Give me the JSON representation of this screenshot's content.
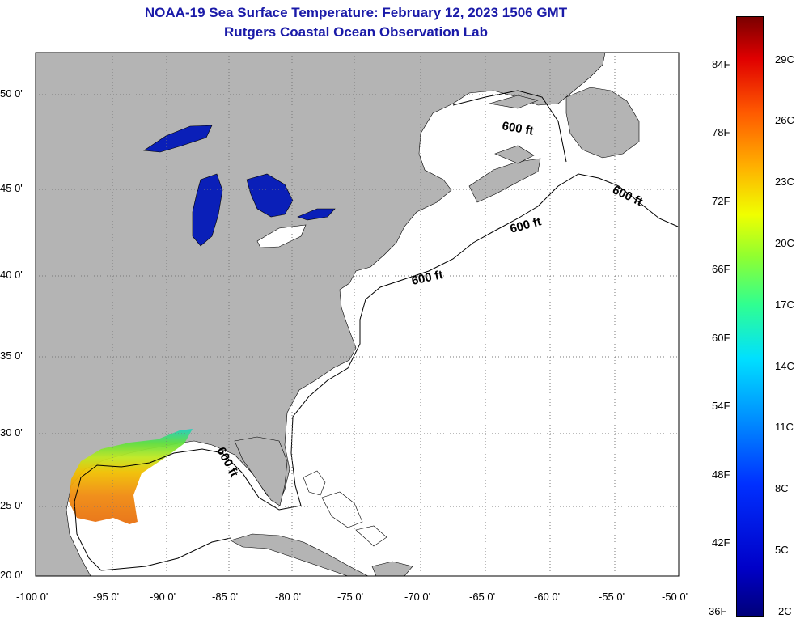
{
  "header": {
    "title": "NOAA-19 Sea Surface Temperature:  February 12, 2023 1506 GMT",
    "subtitle": "Rutgers Coastal Ocean Observation Lab"
  },
  "axes": {
    "lat_labels": [
      "50 0'",
      "45 0'",
      "40 0'",
      "35 0'",
      "30 0'",
      "25 0'",
      "20 0'"
    ],
    "lon_labels": [
      "-100 0'",
      "-95 0'",
      "-90 0'",
      "-85 0'",
      "-80 0'",
      "-75 0'",
      "-70 0'",
      "-65 0'",
      "-60 0'",
      "-55 0'",
      "-50 0'"
    ]
  },
  "contours": {
    "label": "600 ft"
  },
  "colorbar": {
    "f_labels": [
      "84F",
      "78F",
      "72F",
      "66F",
      "60F",
      "54F",
      "48F",
      "42F",
      "36F"
    ],
    "c_labels": [
      "29C",
      "26C",
      "23C",
      "20C",
      "17C",
      "14C",
      "11C",
      "8C",
      "5C",
      "2C"
    ]
  },
  "colors": {
    "land": "#b4b4b4",
    "ocean": "#ffffff",
    "title": "#1a1aa8",
    "lakes": "#0a1fb8"
  }
}
